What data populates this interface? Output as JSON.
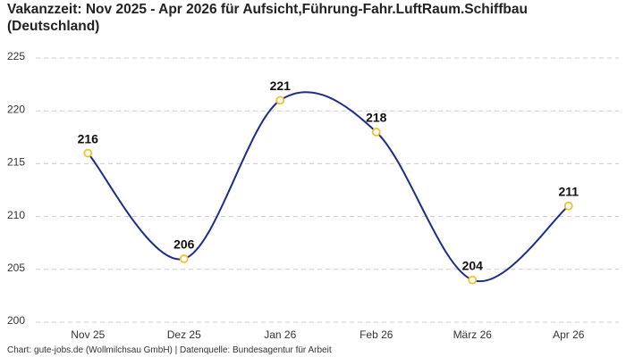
{
  "chart_data": {
    "type": "line",
    "title": "Vakanzzeit: Nov 2025 - Apr 2026 für Aufsicht,Führung-Fahr.LuftRaum.Schiffbau (Deutschland)",
    "source": "Chart: gute-jobs.de (Wollmilchsau GmbH) | Datenquelle: Bundesagentur für Arbeit",
    "categories": [
      "Nov 25",
      "Dez 25",
      "Jan 26",
      "Feb 26",
      "März 26",
      "Apr 26"
    ],
    "series": [
      {
        "name": "Vakanzzeit",
        "color": "#1f2d8a",
        "marker_color": "#f2c230",
        "values": [
          216,
          206,
          221,
          218,
          204,
          211
        ]
      }
    ],
    "ylim": [
      200,
      225
    ],
    "yticks": [
      200,
      205,
      210,
      215,
      220,
      225
    ],
    "grid": true
  }
}
